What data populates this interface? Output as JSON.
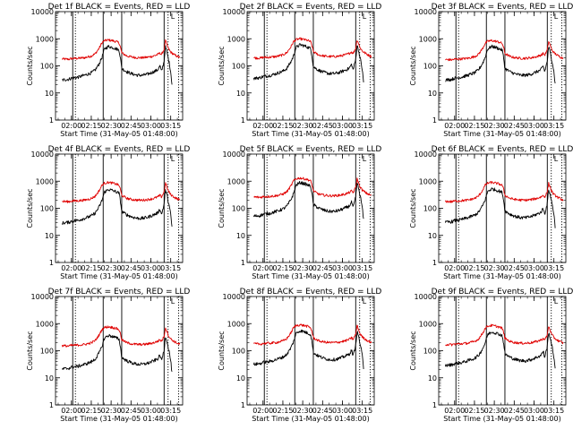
{
  "colors": {
    "events": "#000000",
    "lld": "#e00000",
    "axis": "#000000"
  },
  "chart_data": {
    "type": "line",
    "layout": "3x3 panel grid",
    "yscale": "log",
    "ylim": [
      1,
      10000
    ],
    "xlim": [
      "01:48:00",
      "03:24:00"
    ],
    "ylabel": "Counts/sec",
    "xlabel": "Start Time (31-May-05 01:48:00)",
    "xticks": [
      "02:00",
      "02:15",
      "02:30",
      "02:45",
      "03:00",
      "03:15"
    ],
    "yticks": [
      "1",
      "10",
      "100",
      "1000",
      "10000"
    ],
    "solid_markers": [
      "02:01",
      "02:24",
      "02:38",
      "03:10"
    ],
    "dotted_markers": [
      "02:03",
      "03:13",
      "03:21"
    ],
    "corner_mark": "L",
    "panels": [
      {
        "title": "Det 1f BLACK = Events, RED = LLD",
        "events_scale": 1.0,
        "lld_scale": 1.0
      },
      {
        "title": "Det 2f BLACK = Events, RED = LLD",
        "events_scale": 1.15,
        "lld_scale": 1.1
      },
      {
        "title": "Det 3f BLACK = Events, RED = LLD",
        "events_scale": 1.0,
        "lld_scale": 0.95
      },
      {
        "title": "Det 4f BLACK = Events, RED = LLD",
        "events_scale": 0.95,
        "lld_scale": 1.0
      },
      {
        "title": "Det 5f BLACK = Events, RED = LLD",
        "events_scale": 1.7,
        "lld_scale": 1.45
      },
      {
        "title": "Det 6f BLACK = Events, RED = LLD",
        "events_scale": 1.0,
        "lld_scale": 1.0
      },
      {
        "title": "Det 7f BLACK = Events, RED = LLD",
        "events_scale": 0.7,
        "lld_scale": 0.85
      },
      {
        "title": "Det 8f BLACK = Events, RED = LLD",
        "events_scale": 1.05,
        "lld_scale": 1.0
      },
      {
        "title": "Det 9f BLACK = Events, RED = LLD",
        "events_scale": 0.95,
        "lld_scale": 0.95
      }
    ],
    "base_series": {
      "events": [
        [
          "01:53",
          30
        ],
        [
          "01:58",
          32
        ],
        [
          "02:00",
          35
        ],
        [
          "02:05",
          38
        ],
        [
          "02:10",
          45
        ],
        [
          "02:15",
          55
        ],
        [
          "02:18",
          70
        ],
        [
          "02:21",
          120
        ],
        [
          "02:23",
          200
        ],
        [
          "02:25",
          420
        ],
        [
          "02:28",
          520
        ],
        [
          "02:31",
          480
        ],
        [
          "02:34",
          420
        ],
        [
          "02:36",
          380
        ],
        [
          "02:37",
          200
        ],
        [
          "02:38",
          80
        ],
        [
          "02:42",
          60
        ],
        [
          "02:46",
          50
        ],
        [
          "02:50",
          45
        ],
        [
          "02:54",
          45
        ],
        [
          "02:58",
          50
        ],
        [
          "03:02",
          60
        ],
        [
          "03:05",
          70
        ],
        [
          "03:07",
          100
        ],
        [
          "03:08",
          60
        ],
        [
          "03:10",
          150
        ],
        [
          "03:11",
          500
        ],
        [
          "03:12",
          350
        ],
        [
          "03:13",
          200
        ],
        [
          "03:14",
          120
        ],
        [
          "03:15",
          60
        ],
        [
          "03:16",
          20
        ]
      ],
      "lld": [
        [
          "01:53",
          180
        ],
        [
          "01:58",
          175
        ],
        [
          "02:00",
          185
        ],
        [
          "02:05",
          190
        ],
        [
          "02:10",
          200
        ],
        [
          "02:15",
          230
        ],
        [
          "02:18",
          280
        ],
        [
          "02:21",
          450
        ],
        [
          "02:23",
          700
        ],
        [
          "02:25",
          850
        ],
        [
          "02:28",
          900
        ],
        [
          "02:31",
          850
        ],
        [
          "02:34",
          780
        ],
        [
          "02:36",
          700
        ],
        [
          "02:37",
          500
        ],
        [
          "02:38",
          300
        ],
        [
          "02:42",
          230
        ],
        [
          "02:46",
          210
        ],
        [
          "02:50",
          200
        ],
        [
          "02:54",
          200
        ],
        [
          "02:58",
          210
        ],
        [
          "03:02",
          230
        ],
        [
          "03:05",
          260
        ],
        [
          "03:07",
          300
        ],
        [
          "03:08",
          260
        ],
        [
          "03:10",
          400
        ],
        [
          "03:11",
          850
        ],
        [
          "03:12",
          650
        ],
        [
          "03:13",
          450
        ],
        [
          "03:15",
          320
        ],
        [
          "03:18",
          250
        ],
        [
          "03:22",
          200
        ]
      ]
    }
  }
}
